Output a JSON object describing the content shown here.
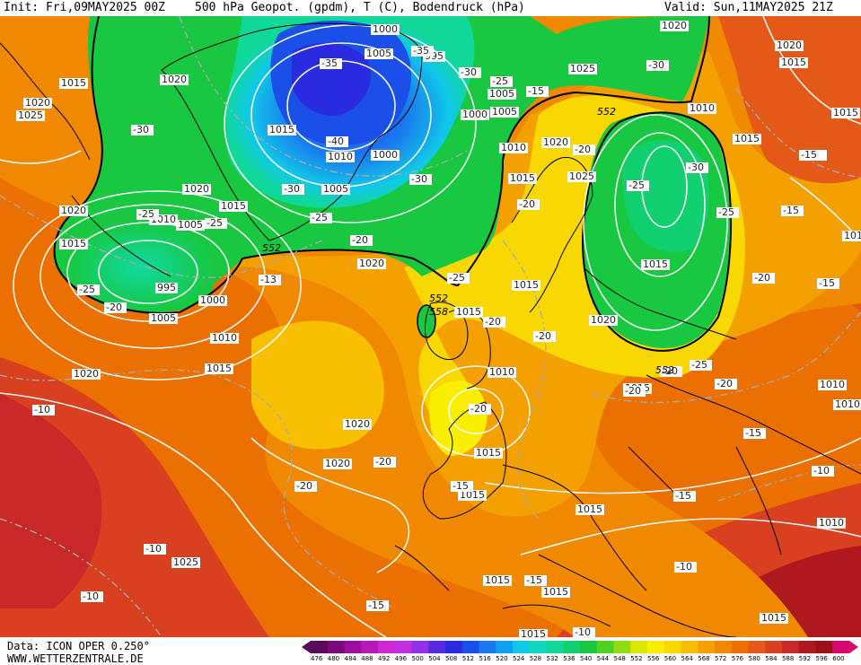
{
  "header": {
    "init": "Init: Fri,09MAY2025 00Z",
    "title": "500 hPa Geopot. (gpdm), T (C), Bodendruck (hPa)",
    "valid": "Valid: Sun,11MAY2025 21Z"
  },
  "footer": {
    "data_source": "Data: ICON OPER 0.250°",
    "website": "WWW.WETTERZENTRALE.DE"
  },
  "legend": {
    "values": [
      "476",
      "480",
      "484",
      "488",
      "492",
      "496",
      "500",
      "504",
      "508",
      "512",
      "516",
      "520",
      "524",
      "528",
      "532",
      "536",
      "540",
      "544",
      "548",
      "552",
      "556",
      "560",
      "564",
      "568",
      "572",
      "576",
      "580",
      "584",
      "588",
      "592",
      "596",
      "600"
    ],
    "colors": [
      "#5a0a5a",
      "#7a0a7a",
      "#9a109a",
      "#b818b8",
      "#d028d0",
      "#c030e0",
      "#9030e8",
      "#5a28e0",
      "#2a2ae0",
      "#1a50e8",
      "#1a78f0",
      "#10a0f0",
      "#10c8e8",
      "#10d8c0",
      "#10d898",
      "#10d070",
      "#18c840",
      "#50d020",
      "#90dc10",
      "#d8e800",
      "#f8f000",
      "#f8d800",
      "#f8c000",
      "#f4a000",
      "#f08800",
      "#ec7000",
      "#e45818",
      "#d84020",
      "#c82828",
      "#b01820",
      "#981018",
      "#d80870"
    ]
  },
  "pressure_labels": [
    {
      "t": "1000"
    },
    {
      "t": "1005"
    },
    {
      "t": "995"
    },
    {
      "t": "1020"
    },
    {
      "t": "1020"
    },
    {
      "t": "1015"
    },
    {
      "t": "1020"
    },
    {
      "t": "1025"
    },
    {
      "t": "1005"
    },
    {
      "t": "1000"
    },
    {
      "t": "1015"
    },
    {
      "t": "1010"
    },
    {
      "t": "1000"
    },
    {
      "t": "1005"
    },
    {
      "t": "1020"
    },
    {
      "t": "1015"
    },
    {
      "t": "1010"
    },
    {
      "t": "1005"
    },
    {
      "t": "1020"
    },
    {
      "t": "1015"
    },
    {
      "t": "995"
    },
    {
      "t": "1000"
    },
    {
      "t": "1005"
    },
    {
      "t": "1010"
    },
    {
      "t": "1015"
    },
    {
      "t": "1020"
    },
    {
      "t": "1020"
    },
    {
      "t": "1020"
    },
    {
      "t": "1025"
    },
    {
      "t": "1005"
    },
    {
      "t": "1010"
    },
    {
      "t": "1015"
    },
    {
      "t": "1010"
    },
    {
      "t": "1015"
    },
    {
      "t": "1020"
    },
    {
      "t": "1015"
    },
    {
      "t": "1015"
    },
    {
      "t": "1020"
    },
    {
      "t": "1025"
    },
    {
      "t": "1015"
    },
    {
      "t": "1020"
    },
    {
      "t": "1010"
    },
    {
      "t": "1015"
    },
    {
      "t": "1015"
    },
    {
      "t": "1015"
    },
    {
      "t": "1015"
    },
    {
      "t": "1015"
    },
    {
      "t": "1015"
    },
    {
      "t": "1020"
    },
    {
      "t": "1015"
    },
    {
      "t": "1010"
    },
    {
      "t": "1020"
    },
    {
      "t": "1010"
    },
    {
      "t": "1015"
    },
    {
      "t": "1010"
    },
    {
      "t": "1010"
    },
    {
      "t": "1015"
    },
    {
      "t": "1015"
    },
    {
      "t": "1025"
    }
  ],
  "temperature_labels": [
    {
      "t": "-35"
    },
    {
      "t": "-35"
    },
    {
      "t": "-30"
    },
    {
      "t": "-25"
    },
    {
      "t": "-30"
    },
    {
      "t": "-40"
    },
    {
      "t": "-30"
    },
    {
      "t": "-30"
    },
    {
      "t": "-25"
    },
    {
      "t": "-25"
    },
    {
      "t": "-20"
    },
    {
      "t": "-25"
    },
    {
      "t": "-20"
    },
    {
      "t": "-20"
    },
    {
      "t": "-13"
    },
    {
      "t": "-25"
    },
    {
      "t": "-20"
    },
    {
      "t": "-25"
    },
    {
      "t": "-20"
    },
    {
      "t": "-20"
    },
    {
      "t": "-20"
    },
    {
      "t": "-20"
    },
    {
      "t": "-15"
    },
    {
      "t": "-25"
    },
    {
      "t": "-30"
    },
    {
      "t": "-25"
    },
    {
      "t": "-20"
    },
    {
      "t": "-20"
    },
    {
      "t": "-20"
    },
    {
      "t": "-20"
    },
    {
      "t": "-15"
    },
    {
      "t": "-15"
    },
    {
      "t": "-15"
    },
    {
      "t": "-15"
    },
    {
      "t": "-10"
    },
    {
      "t": "-15"
    },
    {
      "t": "-10"
    },
    {
      "t": "-10"
    },
    {
      "t": "-15"
    },
    {
      "t": "-10"
    },
    {
      "t": "-15"
    },
    {
      "t": "-10"
    },
    {
      "t": "-10"
    },
    {
      "t": "-15"
    },
    {
      "t": "-20"
    },
    {
      "t": "-30"
    },
    {
      "t": "-25"
    },
    {
      "t": "-15"
    },
    {
      "t": "-25"
    },
    {
      "t": "-30"
    }
  ],
  "geopotential_labels": [
    {
      "t": "552"
    },
    {
      "t": "552"
    },
    {
      "t": "552"
    },
    {
      "t": "558"
    },
    {
      "t": "552"
    }
  ]
}
